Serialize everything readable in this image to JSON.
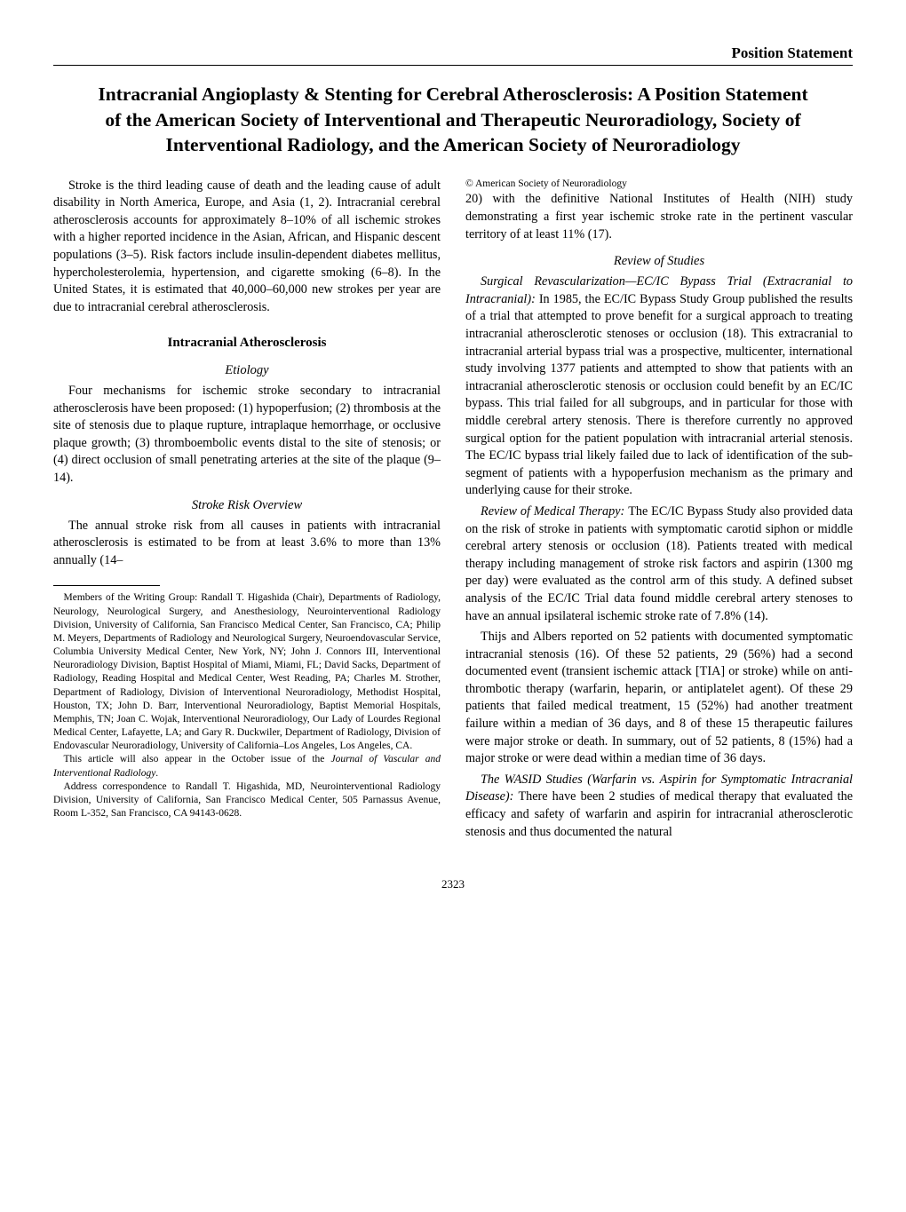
{
  "section_label": "Position Statement",
  "title": "Intracranial Angioplasty & Stenting for Cerebral Atherosclerosis: A Position Statement of the American Society of Interventional and Therapeutic Neuroradiology, Society of Interventional Radiology, and the American Society of Neuroradiology",
  "intro_para": "Stroke is the third leading cause of death and the leading cause of adult disability in North America, Europe, and Asia (1, 2). Intracranial cerebral atherosclerosis accounts for approximately 8–10% of all ischemic strokes with a higher reported incidence in the Asian, African, and Hispanic descent populations (3–5). Risk factors include insulin-dependent diabetes mellitus, hypercholesterolemia, hypertension, and cigarette smoking (6–8). In the United States, it is estimated that 40,000–60,000 new strokes per year are due to intracranial cerebral atherosclerosis.",
  "h2_athero": "Intracranial Atherosclerosis",
  "h3_etiology": "Etiology",
  "etiology_para": "Four mechanisms for ischemic stroke secondary to intracranial atherosclerosis have been proposed: (1) hypoperfusion; (2) thrombosis at the site of stenosis due to plaque rupture, intraplaque hemorrhage, or occlusive plaque growth; (3) thromboembolic events distal to the site of stenosis; or (4) direct occlusion of small penetrating arteries at the site of the plaque (9–14).",
  "h3_risk": "Stroke Risk Overview",
  "risk_para": "The annual stroke risk from all causes in patients with intracranial atherosclerosis is estimated to be from at least 3.6% to more than 13% annually (14–",
  "risk_cont": "20) with the definitive National Institutes of Health (NIH) study demonstrating a first year ischemic stroke rate in the pertinent vascular territory of at least 11% (17).",
  "h3_review": "Review of Studies",
  "review1_lead": "Surgical Revascularization—EC/IC Bypass Trial (Extracranial to Intracranial): ",
  "review1_body": "In 1985, the EC/IC Bypass Study Group published the results of a trial that attempted to prove benefit for a surgical approach to treating intracranial atherosclerotic stenoses or occlusion (18). This extracranial to intracranial arterial bypass trial was a prospective, multicenter, international study involving 1377 patients and attempted to show that patients with an intracranial atherosclerotic stenosis or occlusion could benefit by an EC/IC bypass. This trial failed for all subgroups, and in particular for those with middle cerebral artery stenosis. There is therefore currently no approved surgical option for the patient population with intracranial arterial stenosis. The EC/IC bypass trial likely failed due to lack of identification of the sub-segment of patients with a hypoperfusion mechanism as the primary and underlying cause for their stroke.",
  "review2_lead": "Review of Medical Therapy: ",
  "review2_body": "The EC/IC Bypass Study also provided data on the risk of stroke in patients with symptomatic carotid siphon or middle cerebral artery stenosis or occlusion (18). Patients treated with medical therapy including management of stroke risk factors and aspirin (1300 mg per day) were evaluated as the control arm of this study. A defined subset analysis of the EC/IC Trial data found middle cerebral artery stenoses to have an annual ipsilateral ischemic stroke rate of 7.8% (14).",
  "review2_p2": "Thijs and Albers reported on 52 patients with documented symptomatic intracranial stenosis (16). Of these 52 patients, 29 (56%) had a second documented event (transient ischemic attack [TIA] or stroke) while on anti-thrombotic therapy (warfarin, heparin, or antiplatelet agent). Of these 29 patients that failed medical treatment, 15 (52%) had another treatment failure within a median of 36 days, and 8 of these 15 therapeutic failures were major stroke or death. In summary, out of 52 patients, 8 (15%) had a major stroke or were dead within a median time of 36 days.",
  "review3_lead": "The WASID Studies (Warfarin vs. Aspirin for Symptomatic Intracranial Disease): ",
  "review3_body": "There have been 2 studies of medical therapy that evaluated the efficacy and safety of warfarin and aspirin for intracranial atherosclerotic stenosis and thus documented the natural",
  "fn_members": "Members of the Writing Group: Randall T. Higashida (Chair), Departments of Radiology, Neurology, Neurological Surgery, and Anesthesiology, Neurointerventional Radiology Division, University of California, San Francisco Medical Center, San Francisco, CA; Philip M. Meyers, Departments of Radiology and Neurological Surgery, Neuroendovascular Service, Columbia University Medical Center, New York, NY; John J. Connors III, Interventional Neuroradiology Division, Baptist Hospital of Miami, Miami, FL; David Sacks, Department of Radiology, Reading Hospital and Medical Center, West Reading, PA; Charles M. Strother, Department of Radiology, Division of Interventional Neuroradiology, Methodist Hospital, Houston, TX; John D. Barr, Interventional Neuroradiology, Baptist Memorial Hospitals, Memphis, TN; Joan C. Wojak, Interventional Neuroradiology, Our Lady of Lourdes Regional Medical Center, Lafayette, LA; and Gary R. Duckwiler, Department of Radiology, Division of Endovascular Neuroradiology, University of California–Los Angeles, Los Angeles, CA.",
  "fn_article_lead": "This article will also appear in the October issue of the ",
  "fn_article_ital": "Journal of Vascular and Interventional Radiology",
  "fn_article_tail": ".",
  "fn_address": "Address correspondence to Randall T. Higashida, MD, Neurointerventional Radiology Division, University of California, San Francisco Medical Center, 505 Parnassus Avenue, Room L-352, San Francisco, CA 94143-0628.",
  "copyright": "© American Society of Neuroradiology",
  "pagenum": "2323"
}
